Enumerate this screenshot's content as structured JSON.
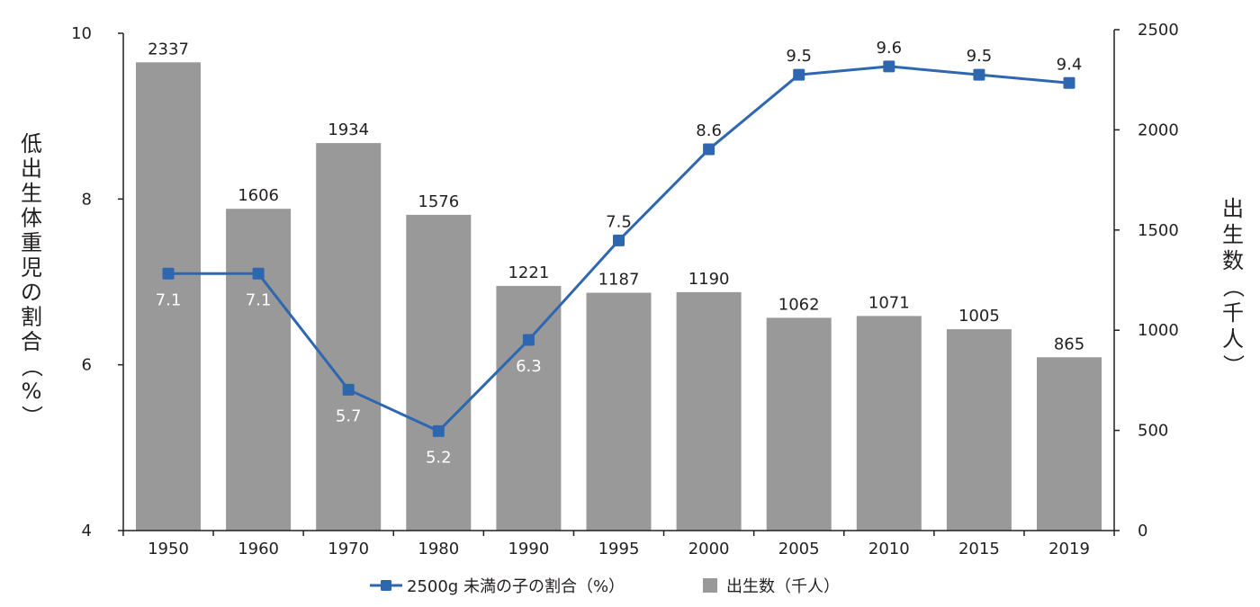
{
  "chart_data": {
    "type": "bar+line",
    "categories": [
      "1950",
      "1960",
      "1970",
      "1980",
      "1990",
      "1995",
      "2000",
      "2005",
      "2010",
      "2015",
      "2019"
    ],
    "series": [
      {
        "name": "出生数（千人）",
        "kind": "bar",
        "axis": "right",
        "values": [
          2337,
          1606,
          1934,
          1576,
          1221,
          1187,
          1190,
          1062,
          1071,
          1005,
          865
        ]
      },
      {
        "name": "2500g 未満の子の割合（%）",
        "kind": "line",
        "axis": "left",
        "values": [
          7.1,
          7.1,
          5.7,
          5.2,
          6.3,
          7.5,
          8.6,
          9.5,
          9.6,
          9.5,
          9.4
        ]
      }
    ],
    "y_left": {
      "label": "低出生体重児の割合（%）",
      "lim": [
        4,
        10
      ],
      "ticks": [
        "4",
        "6",
        "8",
        "10"
      ]
    },
    "y_right": {
      "label": "出生数（千人）",
      "lim": [
        0,
        2500
      ],
      "ticks": [
        "0",
        "500",
        "1000",
        "1500",
        "2000",
        "2500"
      ]
    },
    "legend": {
      "placement": "bottom-center",
      "line_label": "2500g 未満の子の割合（%）",
      "bar_label": "出生数（千人）"
    },
    "colors": {
      "bar": "#999999",
      "line": "#2e66b0",
      "axis": "#231f20",
      "line_label_on_bar": "#ffffff"
    },
    "grid": false
  }
}
